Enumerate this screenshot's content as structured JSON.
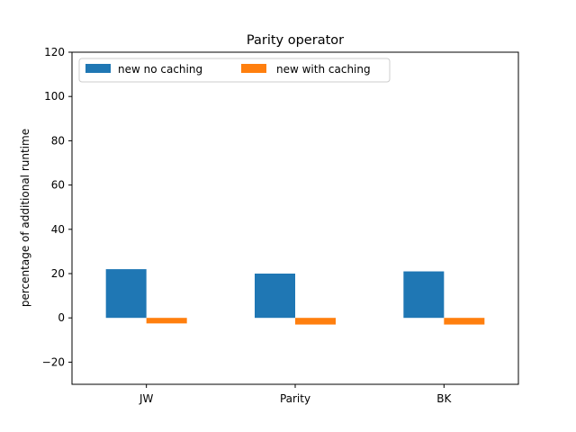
{
  "chart_data": {
    "type": "bar",
    "title": "Parity operator",
    "xlabel": "",
    "ylabel": "percentage of additional runtime",
    "categories": [
      "JW",
      "Parity",
      "BK"
    ],
    "series": [
      {
        "name": "new no caching",
        "values": [
          22,
          20,
          21
        ],
        "color": "#1f77b4"
      },
      {
        "name": "new with caching",
        "values": [
          -2.5,
          -3,
          -3
        ],
        "color": "#ff7f0e"
      }
    ],
    "ylim": [
      -30,
      120
    ],
    "yticks": [
      -20,
      0,
      20,
      40,
      60,
      80,
      100,
      120
    ],
    "grid": false,
    "legend_position": "top-left"
  }
}
